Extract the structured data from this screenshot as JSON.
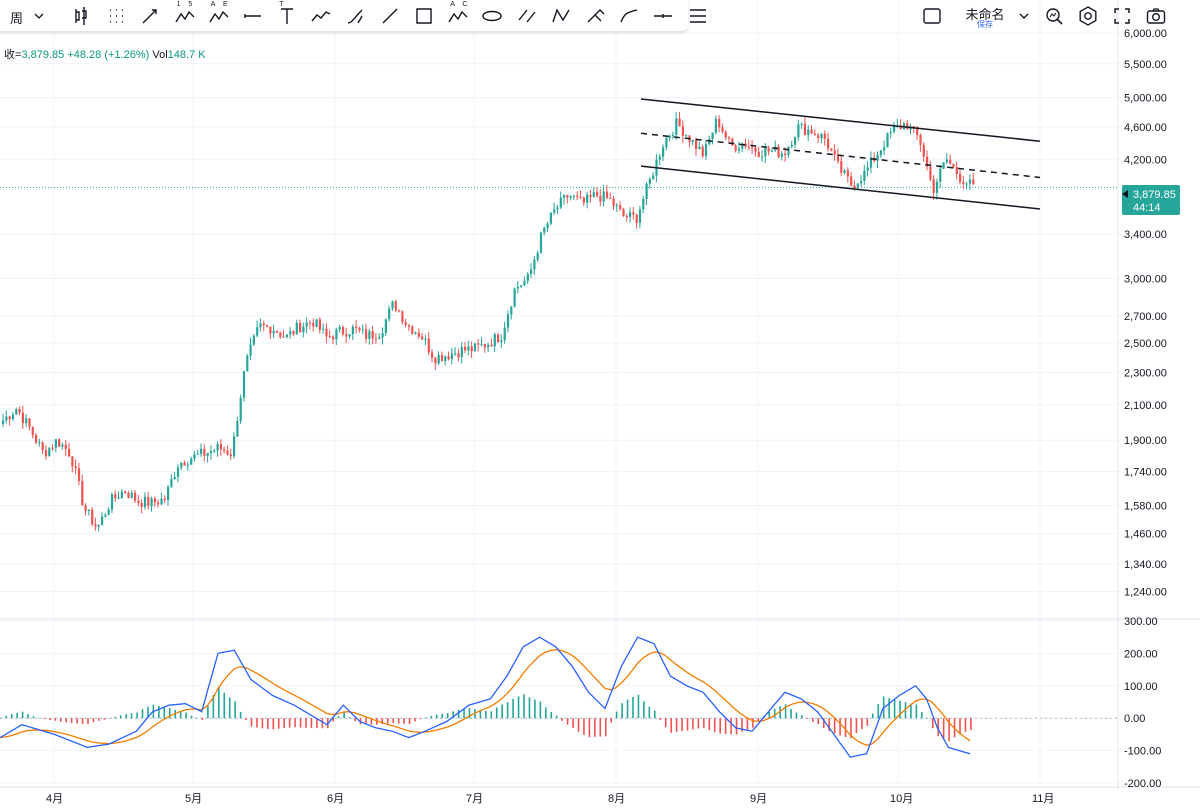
{
  "toolbar": {
    "interval": "周",
    "tools": [
      {
        "name": "candlestick-icon"
      },
      {
        "name": "grid-dots-icon"
      },
      {
        "name": "arrow-line-icon"
      },
      {
        "name": "elliott-15-icon",
        "label": "1 5"
      },
      {
        "name": "elliott-ae-icon",
        "label": "A E"
      },
      {
        "name": "horizontal-ray-icon"
      },
      {
        "name": "text-tool-icon",
        "label": "T"
      },
      {
        "name": "path-icon"
      },
      {
        "name": "brush-icon"
      },
      {
        "name": "trend-line-icon"
      },
      {
        "name": "rectangle-icon"
      },
      {
        "name": "abcd-pattern-icon",
        "label": "A C"
      },
      {
        "name": "ellipse-icon"
      },
      {
        "name": "parallel-channel-icon"
      },
      {
        "name": "xabcd-icon"
      },
      {
        "name": "eraser-icon"
      },
      {
        "name": "curve-icon"
      },
      {
        "name": "horizontal-line-icon"
      },
      {
        "name": "menu-icon"
      }
    ]
  },
  "header": {
    "layout_name": "未命名",
    "save_label": "保存"
  },
  "legend": {
    "close_label": "收=",
    "close": "3,879.85",
    "change": "+48.28 (+1.26%)",
    "vol_label": "Vol",
    "vol": "148.7 K"
  },
  "price_tag": {
    "price": "3,879.85",
    "countdown": "44:14"
  },
  "colors": {
    "up": "#26a69a",
    "down": "#ef5350",
    "macd": "#2962ff",
    "signal": "#f57c00",
    "hist_up": "#26a69a",
    "hist_down": "#ef5350"
  },
  "chart_data": {
    "type": "candlestick",
    "y_scale": "log",
    "ylim": [
      1150,
      6000
    ],
    "y_ticks": [
      6000,
      5500,
      5000,
      4600,
      4200,
      3400,
      3000,
      2700,
      2500,
      2300,
      2100,
      1900,
      1740,
      1580,
      1460,
      1340,
      1240
    ],
    "y_tick_labels": [
      "6,000.00",
      "5,500.00",
      "5,000.00",
      "4,600.00",
      "4,200.00",
      "3,400.00",
      "3,000.00",
      "2,700.00",
      "2,500.00",
      "2,300.00",
      "2,100.00",
      "1,900.00",
      "1,740.00",
      "1,580.00",
      "1,460.00",
      "1,340.00",
      "1,240.00"
    ],
    "x_tick_labels": [
      "4月",
      "5月",
      "6月",
      "7月",
      "8月",
      "9月",
      "10月",
      "11月"
    ],
    "price_anchors": [
      [
        "03-22",
        2010
      ],
      [
        "03-27",
        2080
      ],
      [
        "04-01",
        1960
      ],
      [
        "04-05",
        1830
      ],
      [
        "04-09",
        1900
      ],
      [
        "04-12",
        1830
      ],
      [
        "04-15",
        1570
      ],
      [
        "04-18",
        1480
      ],
      [
        "04-22",
        1600
      ],
      [
        "04-26",
        1650
      ],
      [
        "04-30",
        1600
      ],
      [
        "05-05",
        1590
      ],
      [
        "05-10",
        1610
      ],
      [
        "05-13",
        1780
      ],
      [
        "05-18",
        1810
      ],
      [
        "05-25",
        1830
      ],
      [
        "06-01",
        1860
      ],
      [
        "06-05",
        1830
      ],
      [
        "06-09",
        2350
      ],
      [
        "06-13",
        2620
      ],
      [
        "06-18",
        2610
      ],
      [
        "06-22",
        2540
      ],
      [
        "06-27",
        2620
      ],
      [
        "07-02",
        2660
      ],
      [
        "07-07",
        2540
      ],
      [
        "07-12",
        2580
      ],
      [
        "07-16",
        2600
      ],
      [
        "07-20",
        2550
      ],
      [
        "07-25",
        2580
      ],
      [
        "07-30",
        2800
      ],
      [
        "08-03",
        2630
      ],
      [
        "08-08",
        2560
      ],
      [
        "08-14",
        2400
      ],
      [
        "08-19",
        2420
      ],
      [
        "08-24",
        2450
      ],
      [
        "08-29",
        2460
      ],
      [
        "09-03",
        2500
      ],
      [
        "09-07",
        2560
      ],
      [
        "09-12",
        2920
      ],
      [
        "09-15",
        3000
      ],
      [
        "09-19",
        3400
      ],
      [
        "09-24",
        3650
      ],
      [
        "09-28",
        3800
      ],
      [
        "10-02",
        3700
      ],
      [
        "10-07",
        3800
      ],
      [
        "10-10",
        3750
      ],
      [
        "10-14",
        3580
      ],
      [
        "10-18",
        3560
      ],
      [
        "10-22",
        3950
      ],
      [
        "10-26",
        4400
      ],
      [
        "10-30",
        4650
      ],
      [
        "11-03",
        4450
      ],
      [
        "11-08",
        4250
      ],
      [
        "11-12",
        4700
      ],
      [
        "11-16",
        4350
      ],
      [
        "11-21",
        4400
      ],
      [
        "11-26",
        4300
      ],
      [
        "12-01",
        4300
      ],
      [
        "12-05",
        4280
      ],
      [
        "12-10",
        4600
      ],
      [
        "12-15",
        4550
      ],
      [
        "12-20",
        4450
      ],
      [
        "12-24",
        4100
      ],
      [
        "12-28",
        3900
      ],
      [
        "01-02",
        4050
      ],
      [
        "01-06",
        4300
      ],
      [
        "01-10",
        4550
      ],
      [
        "01-13",
        4650
      ],
      [
        "01-17",
        4450
      ],
      [
        "01-21",
        3850
      ],
      [
        "01-25",
        4200
      ],
      [
        "01-29",
        4000
      ],
      [
        "02-02",
        3880
      ]
    ],
    "channel": {
      "upper": {
        "from": [
          "2025-08-06",
          4980
        ],
        "to": [
          "2025-11-01",
          4420
        ]
      },
      "middle": {
        "from": [
          "2025-08-06",
          4520
        ],
        "to": [
          "2025-11-01",
          3990
        ]
      },
      "lower": {
        "from": [
          "2025-08-06",
          4120
        ],
        "to": [
          "2025-11-01",
          3650
        ]
      }
    },
    "indicator": {
      "type": "macd",
      "ylim": [
        -200,
        300
      ],
      "y_ticks": [
        300,
        200,
        100,
        0,
        -100,
        -200
      ],
      "y_tick_labels": [
        "300.00",
        "200.00",
        "100.00",
        "0.00",
        "-100.00",
        "-200.00"
      ],
      "macd_anchors": [
        [
          0,
          -60
        ],
        [
          4,
          -20
        ],
        [
          7,
          -35
        ],
        [
          10,
          -50
        ],
        [
          13,
          -70
        ],
        [
          16,
          -90
        ],
        [
          20,
          -80
        ],
        [
          25,
          -40
        ],
        [
          28,
          20
        ],
        [
          31,
          40
        ],
        [
          34,
          45
        ],
        [
          37,
          20
        ],
        [
          40,
          200
        ],
        [
          43,
          210
        ],
        [
          46,
          120
        ],
        [
          50,
          70
        ],
        [
          54,
          40
        ],
        [
          57,
          10
        ],
        [
          60,
          -20
        ],
        [
          63,
          40
        ],
        [
          66,
          -10
        ],
        [
          69,
          -30
        ],
        [
          72,
          -40
        ],
        [
          75,
          -60
        ],
        [
          78,
          -40
        ],
        [
          82,
          -10
        ],
        [
          86,
          40
        ],
        [
          90,
          60
        ],
        [
          93,
          130
        ],
        [
          96,
          220
        ],
        [
          99,
          250
        ],
        [
          102,
          220
        ],
        [
          105,
          160
        ],
        [
          108,
          80
        ],
        [
          111,
          30
        ],
        [
          114,
          160
        ],
        [
          117,
          250
        ],
        [
          120,
          230
        ],
        [
          123,
          130
        ],
        [
          126,
          100
        ],
        [
          129,
          80
        ],
        [
          132,
          20
        ],
        [
          135,
          -30
        ],
        [
          138,
          -40
        ],
        [
          141,
          20
        ],
        [
          144,
          80
        ],
        [
          147,
          60
        ],
        [
          150,
          20
        ],
        [
          153,
          -50
        ],
        [
          156,
          -120
        ],
        [
          159,
          -110
        ],
        [
          162,
          30
        ],
        [
          165,
          70
        ],
        [
          168,
          100
        ],
        [
          170,
          60
        ],
        [
          172,
          -30
        ],
        [
          174,
          -90
        ],
        [
          176,
          -100
        ],
        [
          178,
          -110
        ]
      ]
    }
  }
}
